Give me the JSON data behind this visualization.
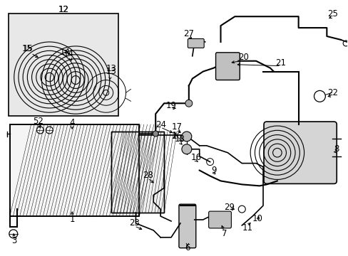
{
  "bg_color": "#ffffff",
  "line_color": "#000000",
  "gray_light": "#d8d8d8",
  "gray_mid": "#b0b0b0",
  "inset_bg": "#e0e0e0"
}
